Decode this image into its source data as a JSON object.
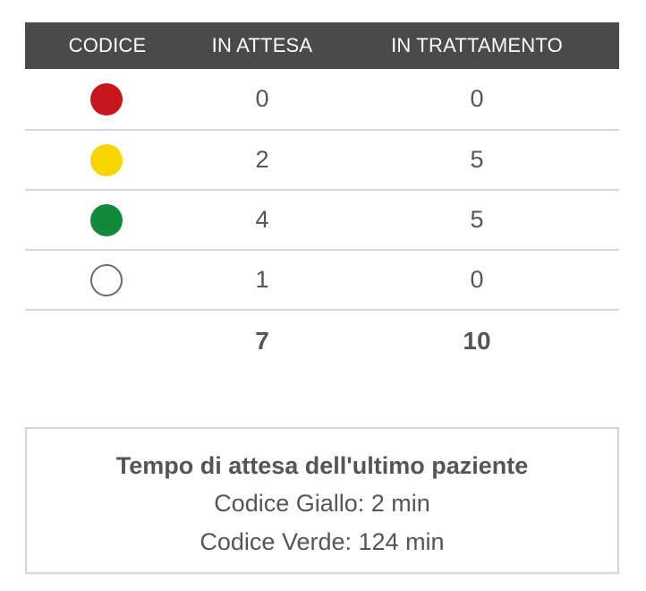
{
  "table": {
    "headers": {
      "code": "CODICE",
      "waiting": "IN ATTESA",
      "in_treatment": "IN TRATTAMENTO"
    },
    "rows": [
      {
        "code_color": "#c4161c",
        "code_icon": "red-dot",
        "waiting": "0",
        "in_treatment": "0"
      },
      {
        "code_color": "#f7d600",
        "code_icon": "yellow-dot",
        "waiting": "2",
        "in_treatment": "5"
      },
      {
        "code_color": "#118a3a",
        "code_icon": "green-dot",
        "waiting": "4",
        "in_treatment": "5"
      },
      {
        "code_color": "#ffffff",
        "code_icon": "white-dot",
        "waiting": "1",
        "in_treatment": "0"
      }
    ],
    "totals": {
      "waiting": "7",
      "in_treatment": "10"
    }
  },
  "info": {
    "title": "Tempo di attesa dell'ultimo paziente",
    "lines": [
      "Codice Giallo: 2 min",
      "Codice Verde: 124 min"
    ]
  },
  "colors": {
    "header_bg": "#4a4a4a",
    "text": "#555555",
    "divider": "#d8d8d8"
  }
}
